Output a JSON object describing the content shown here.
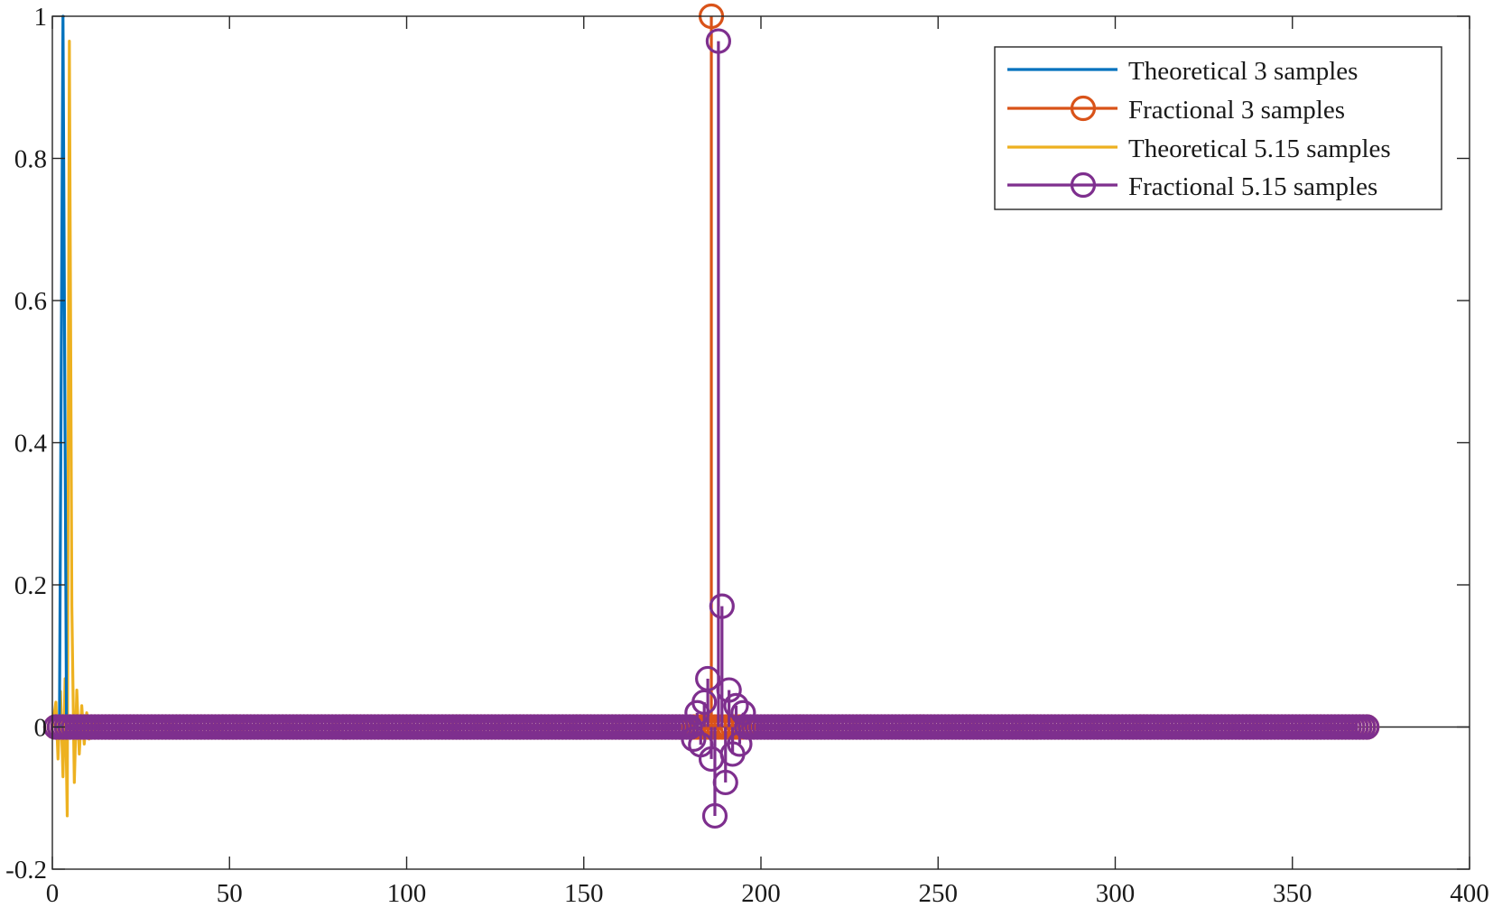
{
  "chart_data": {
    "type": "line",
    "xlim": [
      0,
      400
    ],
    "ylim": [
      -0.2,
      1
    ],
    "xticks": [
      "0",
      "50",
      "100",
      "150",
      "200",
      "250",
      "300",
      "350",
      "400"
    ],
    "xtick_values": [
      0,
      50,
      100,
      150,
      200,
      250,
      300,
      350,
      400
    ],
    "yticks": [
      "-0.2",
      "0",
      "0.2",
      "0.4",
      "0.6",
      "0.8",
      "1"
    ],
    "ytick_values": [
      -0.2,
      0,
      0.2,
      0.4,
      0.6,
      0.8,
      1
    ],
    "legend_position": "top-right",
    "grid": false,
    "series": [
      {
        "name": "Theoretical 3 samples",
        "color": "#0072BD",
        "marker": "none",
        "points": [
          [
            1,
            0
          ],
          [
            2,
            0
          ],
          [
            3,
            1
          ],
          [
            4,
            0
          ],
          [
            5,
            0
          ]
        ]
      },
      {
        "name": "Fractional 3 samples",
        "color": "#D95319",
        "marker": "circle",
        "sample_range": [
          1,
          371
        ],
        "peak": [
          186,
          1
        ],
        "baseline": 0
      },
      {
        "name": "Theoretical 5.15 samples",
        "color": "#EDB120",
        "marker": "none",
        "points": [
          [
            0,
            0
          ],
          [
            1,
            0.035
          ],
          [
            1.6,
            -0.045
          ],
          [
            2.3,
            0.05
          ],
          [
            3,
            -0.07
          ],
          [
            3.6,
            0.068
          ],
          [
            4.2,
            -0.125
          ],
          [
            4.8,
            0.965
          ],
          [
            5.5,
            0.17
          ],
          [
            6.2,
            -0.078
          ],
          [
            6.9,
            0.052
          ],
          [
            7.6,
            -0.038
          ],
          [
            8.3,
            0.03
          ],
          [
            9,
            -0.024
          ],
          [
            9.7,
            0.02
          ],
          [
            10.4,
            -0.017
          ],
          [
            11.1,
            0.015
          ],
          [
            11.8,
            -0.012
          ],
          [
            12.5,
            0.01
          ],
          [
            14,
            0
          ]
        ]
      },
      {
        "name": "Fractional 5.15 samples",
        "color": "#7E2F8E",
        "marker": "circle",
        "sample_range": [
          1,
          371
        ],
        "points": [
          [
            185,
            0.068
          ],
          [
            186,
            -0.045
          ],
          [
            187,
            -0.125
          ],
          [
            188,
            0.965
          ],
          [
            189,
            0.17
          ],
          [
            190,
            -0.078
          ],
          [
            191,
            0.052
          ],
          [
            192,
            -0.038
          ],
          [
            193,
            0.03
          ],
          [
            184,
            0.035
          ],
          [
            183,
            -0.025
          ],
          [
            194,
            -0.024
          ],
          [
            195,
            0.02
          ],
          [
            182,
            0.02
          ],
          [
            181,
            -0.017
          ]
        ],
        "baseline": 0
      }
    ]
  }
}
